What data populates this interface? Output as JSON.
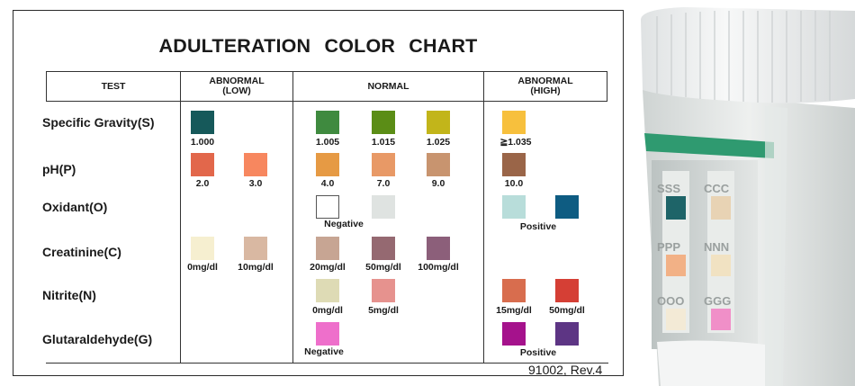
{
  "title": "ADULTERATION  COLOR  CHART",
  "footer": "91002, Rev.4",
  "header": {
    "test": "TEST",
    "abnormal_low_1": "ABNORMAL",
    "abnormal_low_2": "(LOW)",
    "normal": "NORMAL",
    "abnormal_high_1": "ABNORMAL",
    "abnormal_high_2": "(HIGH)"
  },
  "rows": [
    {
      "label": "Specific Gravity(S)",
      "swatches": [
        {
          "color": "#16595a",
          "value": "1.000"
        },
        {
          "color": "#3f8a3f",
          "value": "1.005"
        },
        {
          "color": "#5b8d16",
          "value": "1.015"
        },
        {
          "color": "#c2b51a",
          "value": "1.025"
        },
        {
          "color": "#f7c03d",
          "value": "≧1.035"
        }
      ]
    },
    {
      "label": "pH(P)",
      "swatches": [
        {
          "color": "#e2674b",
          "value": "2.0"
        },
        {
          "color": "#f7875f",
          "value": "3.0"
        },
        {
          "color": "#e69a44",
          "value": "4.0"
        },
        {
          "color": "#e89966",
          "value": "7.0"
        },
        {
          "color": "#c8946f",
          "value": "9.0"
        },
        {
          "color": "#9a6548",
          "value": "10.0"
        }
      ]
    },
    {
      "label": "Oxidant(O)",
      "swatches": [
        {
          "color": "#ffffff"
        },
        {
          "color": "#dfe3e1"
        },
        {
          "color": "#b8ddda"
        },
        {
          "color": "#0e5c82"
        }
      ],
      "labels": {
        "negative": "Negative",
        "positive": "Positive"
      }
    },
    {
      "label": "Creatinine(C)",
      "swatches": [
        {
          "color": "#f6efd0",
          "value": "0mg/dl"
        },
        {
          "color": "#d9b8a2",
          "value": "10mg/dl"
        },
        {
          "color": "#c7a593",
          "value": "20mg/dl"
        },
        {
          "color": "#956971",
          "value": "50mg/dl"
        },
        {
          "color": "#8c5f7a",
          "value": "100mg/dl"
        }
      ]
    },
    {
      "label": "Nitrite(N)",
      "swatches": [
        {
          "color": "#dedbb5",
          "value": "0mg/dl"
        },
        {
          "color": "#e6928e",
          "value": "5mg/dl"
        },
        {
          "color": "#d86d4e",
          "value": "15mg/dl"
        },
        {
          "color": "#d53f35",
          "value": "50mg/dl"
        }
      ]
    },
    {
      "label": "Glutaraldehyde(G)",
      "swatches": [
        {
          "color": "#ee6fcb"
        },
        {
          "color": "#a5128c"
        },
        {
          "color": "#5d3584"
        }
      ],
      "labels": {
        "negative": "Negative",
        "positive": "Positive"
      }
    }
  ],
  "photo": {
    "strip_labels": [
      "SSS",
      "CCC",
      "PPP",
      "NNN",
      "OOO",
      "GGG"
    ]
  }
}
